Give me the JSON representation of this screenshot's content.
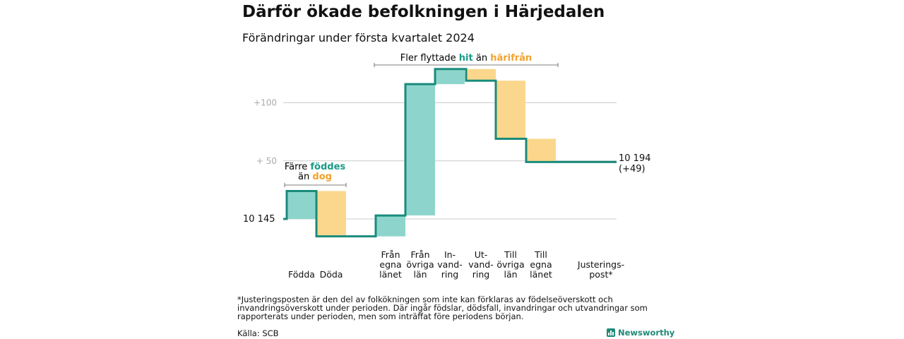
{
  "title": "Därför ökade befolkningen i Härjedalen",
  "subtitle": "Förändringar under första kvartalet 2024",
  "colors": {
    "increase": "#8dd5cc",
    "decrease": "#fad78c",
    "line": "#1a8b7c",
    "teal_text": "#1a9a88",
    "orange_text": "#f2a22c",
    "grid": "#cccccc",
    "tick_text": "#aaaaaa"
  },
  "chart_data": {
    "type": "waterfall",
    "baseline": 10145,
    "final": 10194,
    "final_label": "10 194",
    "final_change_label": "(+49)",
    "start_label": "10  145",
    "y_ticks": [
      {
        "value": 100,
        "label": "+100"
      },
      {
        "value": 50,
        "label": "+  50"
      }
    ],
    "ylim": [
      -15,
      130
    ],
    "steps": [
      {
        "label_lines": [
          "Födda"
        ],
        "change": 24,
        "kind": "increase"
      },
      {
        "label_lines": [
          "Döda"
        ],
        "change": -39,
        "kind": "decrease"
      },
      {
        "label_lines": [
          "Från",
          "egna",
          "länet"
        ],
        "change": 18,
        "kind": "increase"
      },
      {
        "label_lines": [
          "Från",
          "övriga",
          "län"
        ],
        "change": 113,
        "kind": "increase"
      },
      {
        "label_lines": [
          "In-",
          "vand-",
          "ring"
        ],
        "change": 13,
        "kind": "increase"
      },
      {
        "label_lines": [
          "Ut-",
          "vand-",
          "ring"
        ],
        "change": -10,
        "kind": "decrease"
      },
      {
        "label_lines": [
          "Till",
          "övriga",
          "län"
        ],
        "change": -50,
        "kind": "decrease"
      },
      {
        "label_lines": [
          "Till",
          "egna",
          "länet"
        ],
        "change": -20,
        "kind": "decrease"
      },
      {
        "label_lines": [
          "Justerings-",
          "post*"
        ],
        "change": 0,
        "kind": "adjustment"
      }
    ]
  },
  "annotations": {
    "left": {
      "line1": "Färre",
      "word_teal": "föddes",
      "line2_prefix": "än",
      "word_orange": "dog"
    },
    "top": {
      "prefix": "Fler flyttade",
      "word_teal": "hit",
      "middle": "än",
      "word_orange": "härifrån"
    }
  },
  "footnote": "*Justeringsposten är den del av folkökningen som inte kan förklaras av födelseöverskott och invandringsöverskott under perioden. Där ingår födslar, dödsfall, invandringar och utvandringar som rapporterats under perioden, men som inträffat före periodens början.",
  "source": "Källa: SCB",
  "brand": "Newsworthy"
}
